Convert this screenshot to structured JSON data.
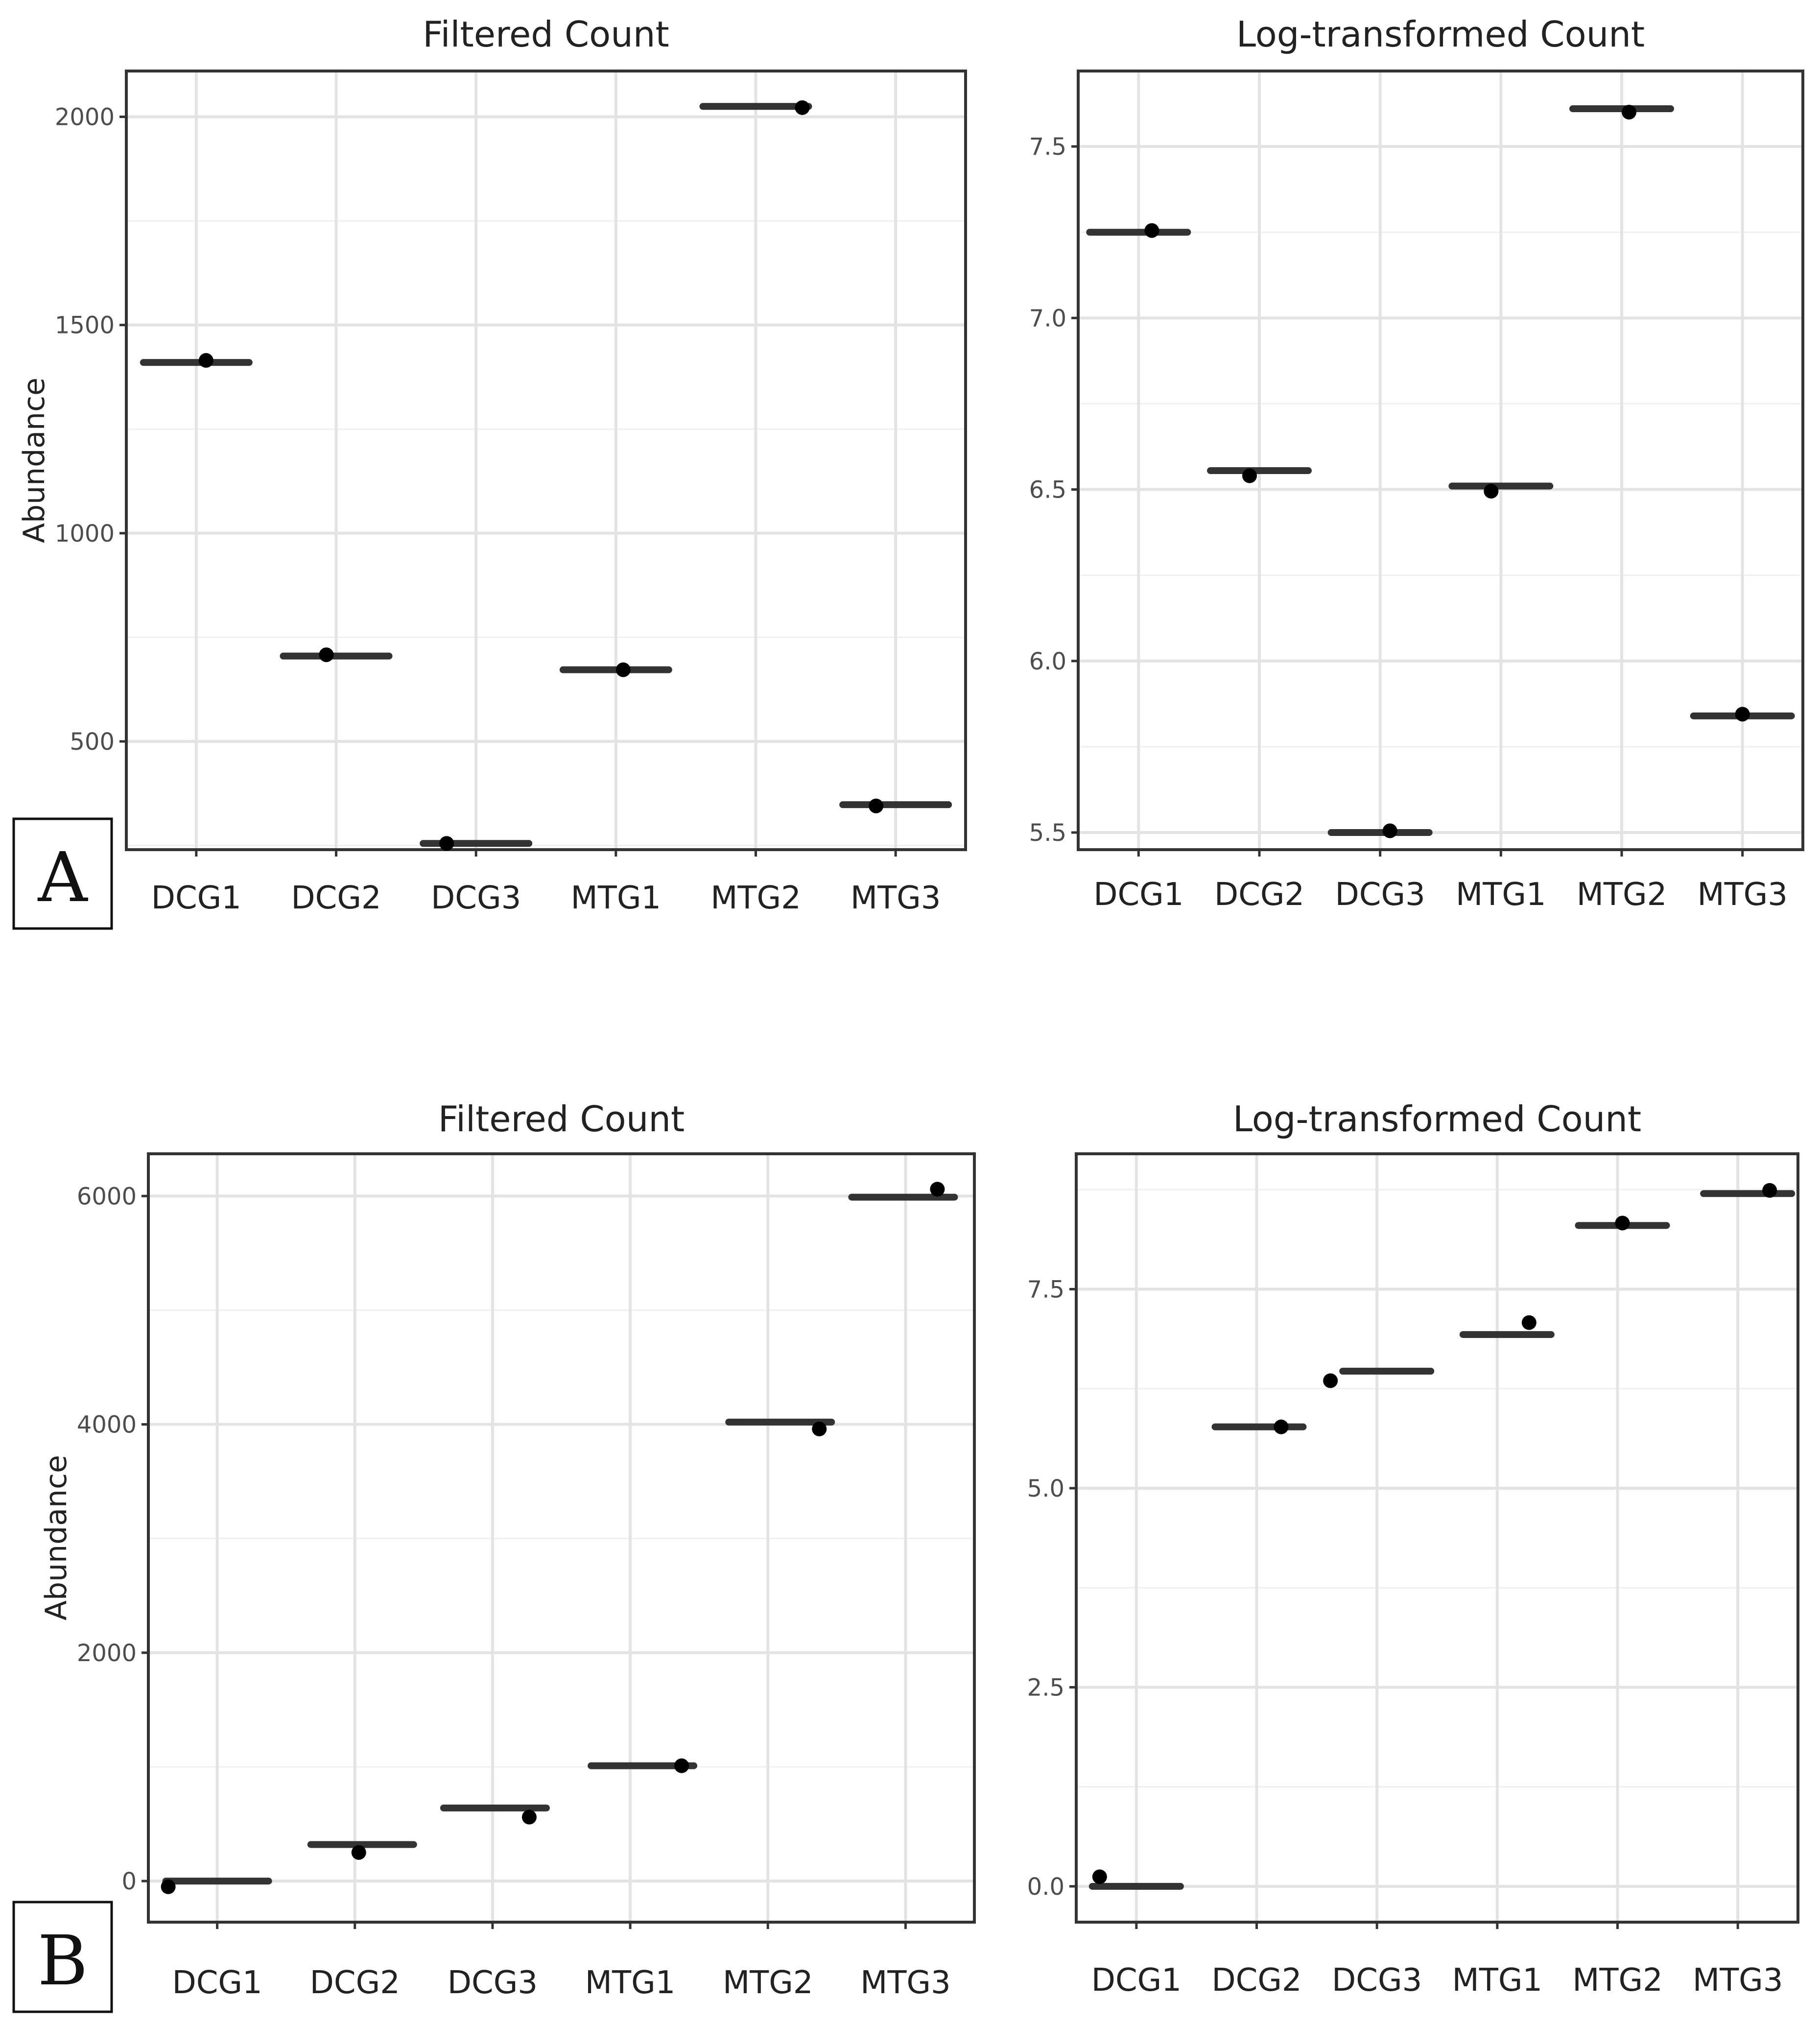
{
  "chart_data": [
    {
      "id": "A-filtered",
      "panel": "A",
      "type": "scatter",
      "title": "Filtered Count",
      "ylabel": "Abundance",
      "categories": [
        "DCG1",
        "DCG2",
        "DCG3",
        "MTG1",
        "MTG2",
        "MTG3"
      ],
      "series": [
        {
          "name": "mean",
          "values": [
            1410,
            705,
            255,
            672,
            2025,
            348
          ]
        },
        {
          "name": "points",
          "values": [
            1415,
            708,
            255,
            672,
            2022,
            345
          ]
        }
      ],
      "ylim": [
        240,
        2110
      ],
      "yticks": [
        500,
        1000,
        1500,
        2000
      ],
      "ytick_labels": [
        "500",
        "1000",
        "1500",
        "2000"
      ]
    },
    {
      "id": "A-log",
      "panel": "A",
      "type": "scatter",
      "title": "Log-transformed Count",
      "ylabel": "",
      "categories": [
        "DCG1",
        "DCG2",
        "DCG3",
        "MTG1",
        "MTG2",
        "MTG3"
      ],
      "series": [
        {
          "name": "mean",
          "values": [
            7.25,
            6.555,
            5.5,
            6.51,
            7.61,
            5.84
          ]
        },
        {
          "name": "points",
          "values": [
            7.255,
            6.54,
            5.505,
            6.495,
            7.6,
            5.845
          ]
        }
      ],
      "ylim": [
        5.45,
        7.72
      ],
      "yticks": [
        5.5,
        6.0,
        6.5,
        7.0,
        7.5
      ],
      "ytick_labels": [
        "5.5",
        "6.0",
        "6.5",
        "7.0",
        "7.5"
      ]
    },
    {
      "id": "B-filtered",
      "panel": "B",
      "type": "scatter",
      "title": "Filtered Count",
      "ylabel": "Abundance",
      "categories": [
        "DCG1",
        "DCG2",
        "DCG3",
        "MTG1",
        "MTG2",
        "MTG3"
      ],
      "series": [
        {
          "name": "mean",
          "values": [
            0,
            320,
            640,
            1010,
            4020,
            5990
          ]
        },
        {
          "name": "points",
          "values": [
            -50,
            250,
            560,
            1010,
            3960,
            6060
          ]
        }
      ],
      "ylim": [
        -360,
        6370
      ],
      "yticks": [
        0,
        2000,
        4000,
        6000
      ],
      "ytick_labels": [
        "0",
        "2000",
        "4000",
        "6000"
      ]
    },
    {
      "id": "B-log",
      "panel": "B",
      "type": "scatter",
      "title": "Log-transformed Count",
      "ylabel": "",
      "categories": [
        "DCG1",
        "DCG2",
        "DCG3",
        "MTG1",
        "MTG2",
        "MTG3"
      ],
      "series": [
        {
          "name": "mean",
          "values": [
            0.0,
            5.77,
            6.47,
            6.93,
            8.3,
            8.7
          ]
        },
        {
          "name": "points",
          "values": [
            0.12,
            5.77,
            6.35,
            7.08,
            8.33,
            8.74
          ]
        }
      ],
      "ylim": [
        -0.45,
        9.2
      ],
      "yticks": [
        0.0,
        2.5,
        5.0,
        7.5
      ],
      "ytick_labels": [
        "0.0",
        "2.5",
        "5.0",
        "7.5"
      ]
    }
  ],
  "panel_labels": {
    "a": "A",
    "b": "B"
  }
}
